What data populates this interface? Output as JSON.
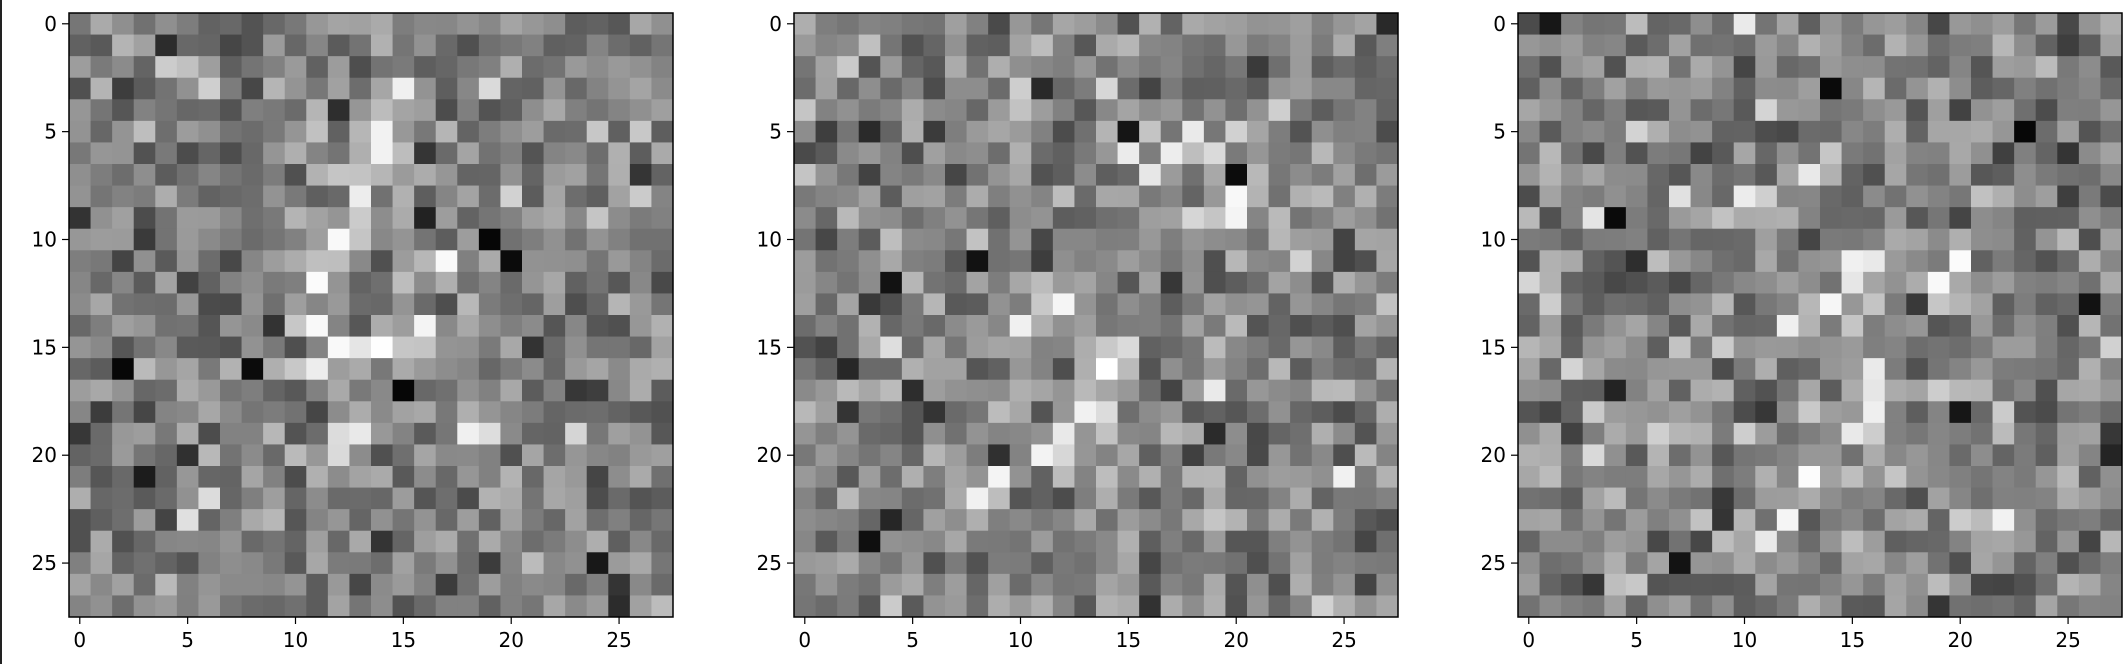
{
  "chart_data": [
    {
      "type": "heatmap",
      "colormap": "gray",
      "rows": 28,
      "cols": 28,
      "xticks": [
        0,
        5,
        10,
        15,
        20,
        25
      ],
      "yticks": [
        0,
        5,
        10,
        15,
        20,
        25
      ],
      "xlim": [
        -0.5,
        27.5
      ],
      "ylim": [
        27.5,
        -0.5
      ],
      "description_values": "28x28 grayscale noise image with a faint bright diagonal stroke; brightest pixels near (15,3), (11,16), (13,19)",
      "seed": 11,
      "bright_points": [
        [
          15,
          3
        ],
        [
          14,
          5
        ],
        [
          14,
          6
        ],
        [
          13,
          8
        ],
        [
          12,
          10
        ],
        [
          11,
          12
        ],
        [
          11,
          14
        ],
        [
          11,
          16
        ],
        [
          12,
          15
        ],
        [
          14,
          15
        ],
        [
          16,
          14
        ],
        [
          13,
          19
        ],
        [
          18,
          19
        ],
        [
          17,
          11
        ]
      ],
      "dark_points": [
        [
          2,
          16
        ],
        [
          20,
          11
        ],
        [
          8,
          16
        ],
        [
          24,
          25
        ],
        [
          19,
          10
        ],
        [
          15,
          17
        ]
      ]
    },
    {
      "type": "heatmap",
      "colormap": "gray",
      "rows": 28,
      "cols": 28,
      "xticks": [
        0,
        5,
        10,
        15,
        20,
        25
      ],
      "yticks": [
        0,
        5,
        10,
        15,
        20,
        25
      ],
      "xlim": [
        -0.5,
        27.5
      ],
      "ylim": [
        27.5,
        -0.5
      ],
      "description_values": "28x28 grayscale noise image with a faint bright stroke; brightest pixels near (17,6), (16,7), (8,22), (20,8)",
      "seed": 29,
      "bright_points": [
        [
          17,
          6
        ],
        [
          16,
          7
        ],
        [
          18,
          5
        ],
        [
          20,
          8
        ],
        [
          20,
          9
        ],
        [
          14,
          16
        ],
        [
          13,
          18
        ],
        [
          12,
          19
        ],
        [
          11,
          20
        ],
        [
          9,
          21
        ],
        [
          8,
          22
        ],
        [
          10,
          14
        ],
        [
          12,
          13
        ]
      ],
      "dark_points": [
        [
          8,
          11
        ],
        [
          4,
          12
        ],
        [
          15,
          5
        ],
        [
          3,
          24
        ],
        [
          20,
          7
        ]
      ]
    },
    {
      "type": "heatmap",
      "colormap": "gray",
      "rows": 28,
      "cols": 28,
      "xticks": [
        0,
        5,
        10,
        15,
        20,
        25
      ],
      "yticks": [
        0,
        5,
        10,
        15,
        20,
        25
      ],
      "xlim": [
        -0.5,
        27.5
      ],
      "ylim": [
        27.5,
        -0.5
      ],
      "description_values": "28x28 grayscale noise image with a faint bright diagonal stroke; brightest pixels near (11,24), (12,23), (16,18), (16,11)",
      "seed": 47,
      "bright_points": [
        [
          11,
          24
        ],
        [
          12,
          23
        ],
        [
          13,
          21
        ],
        [
          15,
          19
        ],
        [
          16,
          18
        ],
        [
          16,
          16
        ],
        [
          16,
          11
        ],
        [
          15,
          12
        ],
        [
          10,
          8
        ],
        [
          13,
          7
        ],
        [
          12,
          14
        ],
        [
          14,
          13
        ],
        [
          19,
          12
        ],
        [
          22,
          23
        ]
      ],
      "dark_points": [
        [
          14,
          3
        ],
        [
          4,
          9
        ],
        [
          7,
          25
        ],
        [
          20,
          18
        ],
        [
          23,
          5
        ]
      ]
    }
  ]
}
